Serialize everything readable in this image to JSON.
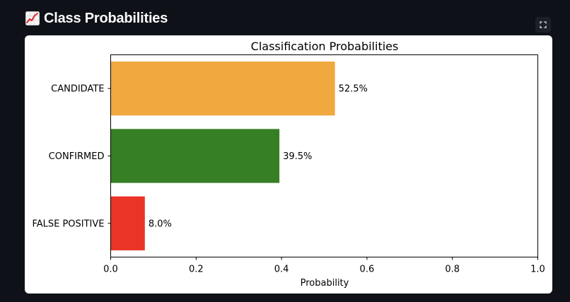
{
  "header": {
    "icon": "chart-increasing-icon",
    "title": "Class Probabilities"
  },
  "toolbar": {
    "fullscreen_icon": "fullscreen-icon"
  },
  "chart_data": {
    "type": "bar",
    "orientation": "horizontal",
    "title": "Classification Probabilities",
    "xlabel": "Probability",
    "ylabel": "",
    "xlim": [
      0,
      1.0
    ],
    "xticks": [
      "0.0",
      "0.2",
      "0.4",
      "0.6",
      "0.8",
      "1.0"
    ],
    "categories": [
      "CANDIDATE",
      "CONFIRMED",
      "FALSE POSITIVE"
    ],
    "values": [
      0.525,
      0.395,
      0.08
    ],
    "value_labels": [
      "52.5%",
      "39.5%",
      "8.0%"
    ],
    "colors": [
      "#f0a83f",
      "#367f24",
      "#e93427"
    ],
    "grid": false
  }
}
